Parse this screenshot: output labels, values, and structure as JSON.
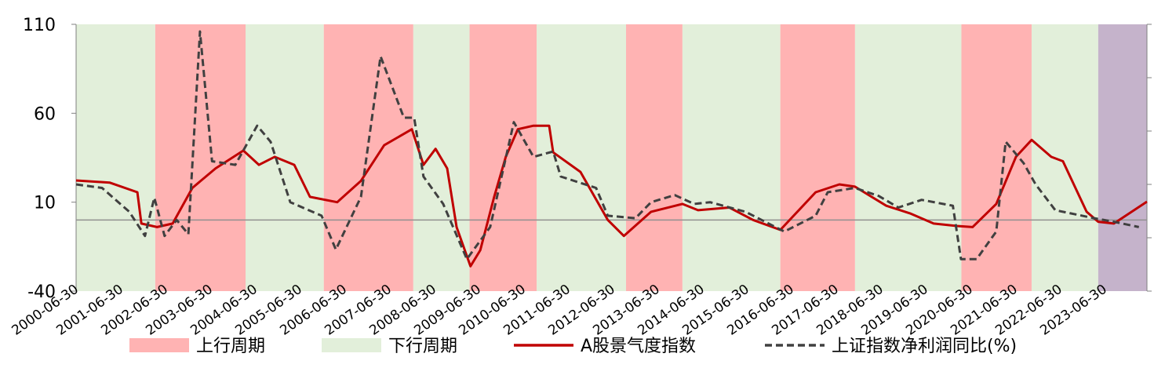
{
  "chart_data": {
    "type": "line",
    "xlim": [
      2000.5,
      2024.45
    ],
    "xticks": [
      {
        "value": 2000.5,
        "label": "2000-06-30"
      },
      {
        "value": 2001.5,
        "label": "2001-06-30"
      },
      {
        "value": 2002.5,
        "label": "2002-06-30"
      },
      {
        "value": 2003.5,
        "label": "2003-06-30"
      },
      {
        "value": 2004.5,
        "label": "2004-06-30"
      },
      {
        "value": 2005.5,
        "label": "2005-06-30"
      },
      {
        "value": 2006.5,
        "label": "2006-06-30"
      },
      {
        "value": 2007.5,
        "label": "2007-06-30"
      },
      {
        "value": 2008.5,
        "label": "2008-06-30"
      },
      {
        "value": 2009.5,
        "label": "2009-06-30"
      },
      {
        "value": 2010.5,
        "label": "2010-06-30"
      },
      {
        "value": 2011.5,
        "label": "2011-06-30"
      },
      {
        "value": 2012.5,
        "label": "2012-06-30"
      },
      {
        "value": 2013.5,
        "label": "2013-06-30"
      },
      {
        "value": 2014.5,
        "label": "2014-06-30"
      },
      {
        "value": 2015.5,
        "label": "2015-06-30"
      },
      {
        "value": 2016.5,
        "label": "2016-06-30"
      },
      {
        "value": 2017.5,
        "label": "2017-06-30"
      },
      {
        "value": 2018.5,
        "label": "2018-06-30"
      },
      {
        "value": 2019.5,
        "label": "2019-06-30"
      },
      {
        "value": 2020.5,
        "label": "2020-06-30"
      },
      {
        "value": 2021.5,
        "label": "2021-06-30"
      },
      {
        "value": 2022.5,
        "label": "2022-06-30"
      },
      {
        "value": 2023.5,
        "label": "2023-06-30"
      }
    ],
    "ylim": [
      -40,
      110
    ],
    "yticks": [
      -40,
      10,
      60,
      110
    ],
    "reference_line": 0,
    "up_periods": {
      "name": "上行周期",
      "color": "#ffb3b3",
      "ranges": [
        [
          2002.27,
          2004.29
        ],
        [
          2006.04,
          2008.04
        ],
        [
          2009.3,
          2010.8
        ],
        [
          2012.8,
          2014.06
        ],
        [
          2016.25,
          2017.92
        ],
        [
          2020.3,
          2021.87
        ]
      ]
    },
    "down_periods": {
      "name": "下行周期",
      "color": "#e2efda",
      "ranges": [
        [
          2000.5,
          2002.27
        ],
        [
          2004.29,
          2006.04
        ],
        [
          2008.04,
          2009.3
        ],
        [
          2010.8,
          2012.8
        ],
        [
          2014.06,
          2016.25
        ],
        [
          2017.92,
          2020.3
        ],
        [
          2021.87,
          2023.36
        ]
      ]
    },
    "highlight_period": {
      "color": "#c5b3cb",
      "range": [
        2023.36,
        2024.45
      ]
    },
    "series": [
      {
        "name": "A股景气度指数",
        "color": "#c00000",
        "dashed": false,
        "x": [
          2000.5,
          2001.25,
          2001.87,
          2001.96,
          2002.31,
          2002.66,
          2003.1,
          2003.62,
          2004.24,
          2004.59,
          2004.94,
          2005.38,
          2005.73,
          2006.34,
          2006.87,
          2007.39,
          2008.01,
          2008.27,
          2008.54,
          2008.8,
          2009.01,
          2009.32,
          2009.54,
          2009.85,
          2010.11,
          2010.38,
          2010.73,
          2011.08,
          2011.17,
          2011.78,
          2012.39,
          2012.75,
          2013.36,
          2014.06,
          2014.41,
          2015.11,
          2015.64,
          2016.25,
          2017.04,
          2017.57,
          2017.92,
          2018.62,
          2019.15,
          2019.68,
          2020.2,
          2020.55,
          2021.08,
          2021.52,
          2021.87,
          2022.31,
          2022.57,
          2023.1,
          2023.36,
          2023.71,
          2024.45
        ],
        "values": [
          22.2,
          21,
          15.6,
          -2,
          -4,
          -2,
          18,
          29,
          39,
          31,
          35.5,
          31,
          13,
          10,
          22,
          42,
          51,
          31,
          40,
          29,
          -4,
          -26,
          -17,
          13,
          35.5,
          51,
          53,
          53,
          38,
          27,
          0,
          -9,
          4.6,
          9,
          5.5,
          7,
          0,
          -5.6,
          15.6,
          20,
          18.7,
          8,
          3.7,
          -2,
          -3.4,
          -4,
          9,
          35.5,
          45,
          35.5,
          33,
          4.6,
          -1,
          -2,
          10.3
        ]
      },
      {
        "name": "上证指数净利润同比(%)",
        "color": "#404040",
        "dashed": true,
        "x": [
          2000.5,
          2001.08,
          2001.69,
          2002.04,
          2002.25,
          2002.48,
          2002.75,
          2003.01,
          2003.27,
          2003.54,
          2004.06,
          2004.55,
          2004.85,
          2005.29,
          2005.99,
          2006.31,
          2006.87,
          2007.31,
          2007.83,
          2008.06,
          2008.27,
          2008.71,
          2009.24,
          2009.76,
          2010.29,
          2010.73,
          2011.17,
          2011.34,
          2012.13,
          2012.39,
          2013.01,
          2013.36,
          2013.89,
          2014.32,
          2014.68,
          2015.47,
          2016.34,
          2017.04,
          2017.31,
          2017.92,
          2018.45,
          2018.89,
          2019.41,
          2020.11,
          2020.29,
          2020.64,
          2021.08,
          2021.29,
          2021.69,
          2021.96,
          2022.4,
          2023.27,
          2023.71,
          2024.27
        ],
        "values": [
          20,
          18,
          4.6,
          -9,
          12.5,
          -9,
          0,
          -8,
          106,
          33,
          31,
          53,
          44,
          10,
          2.4,
          -16.6,
          13,
          92,
          57.5,
          57.5,
          24.4,
          9,
          -22,
          -4,
          55,
          35.5,
          38.5,
          24.4,
          18,
          2.4,
          1,
          10,
          14,
          9,
          10,
          4.6,
          -6.5,
          2.4,
          15.6,
          18,
          13.5,
          7,
          11.3,
          8,
          -22,
          -22,
          -6.5,
          44,
          32,
          20,
          5.5,
          1,
          -1,
          -4
        ]
      }
    ]
  }
}
